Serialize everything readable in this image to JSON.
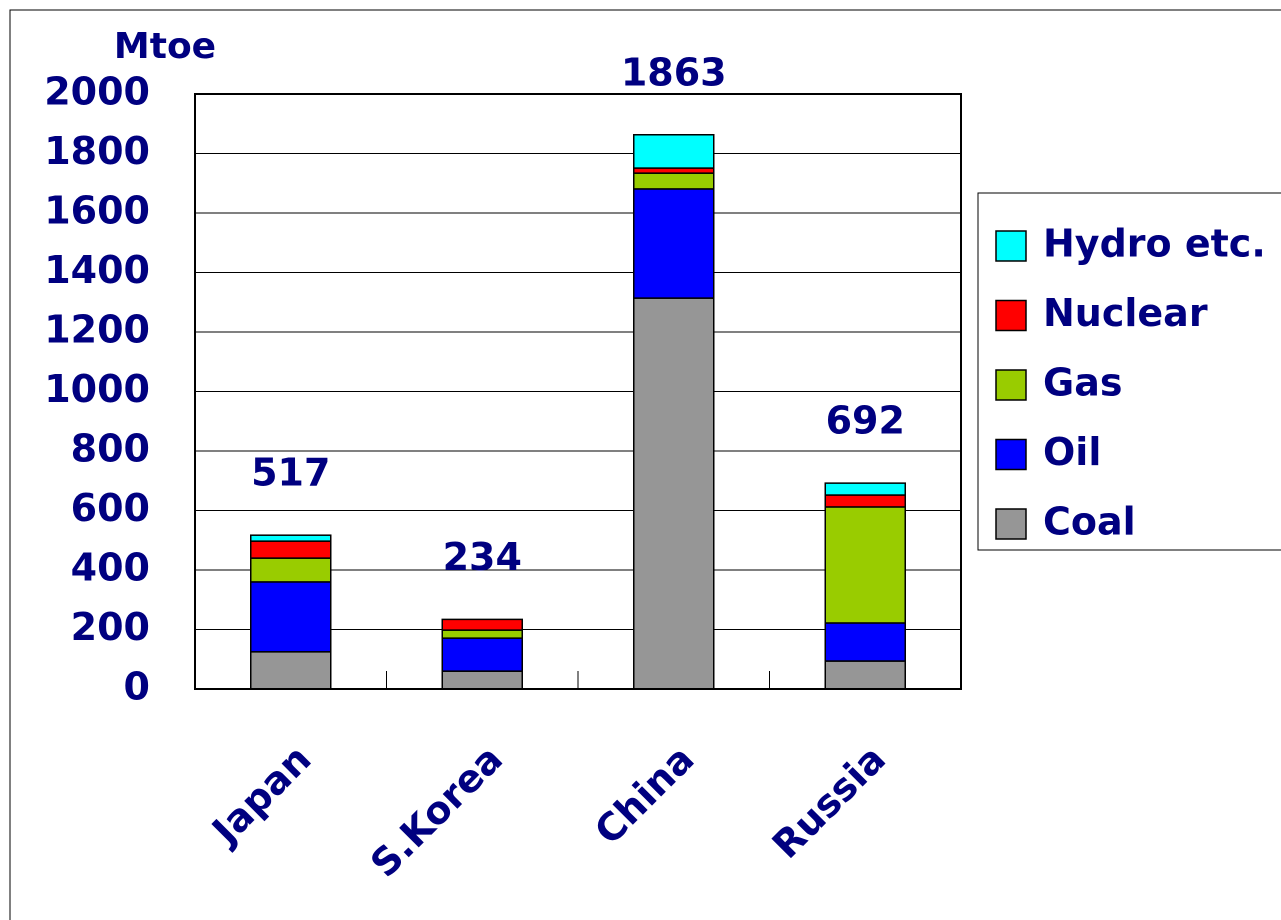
{
  "chart_data": {
    "type": "stacked_bar",
    "y_label": "Mtoe",
    "categories": [
      "Japan",
      "S.Korea",
      "China",
      "Russia"
    ],
    "series": [
      {
        "name": "Coal",
        "color": "#969696",
        "values": [
          125,
          60,
          1314,
          94
        ]
      },
      {
        "name": "Oil",
        "color": "#0000ff",
        "values": [
          235,
          111,
          367,
          128
        ]
      },
      {
        "name": "Gas",
        "color": "#99cc00",
        "values": [
          80,
          27,
          53,
          390
        ]
      },
      {
        "name": "Nuclear",
        "color": "#ff0000",
        "values": [
          57,
          36,
          17,
          40
        ]
      },
      {
        "name": "Hydro etc.",
        "color": "#00ffff",
        "values": [
          20,
          0,
          112,
          40
        ]
      }
    ],
    "totals": [
      517,
      234,
      1863,
      692
    ],
    "ylim": [
      0,
      2000
    ],
    "yticks": [
      0,
      200,
      400,
      600,
      800,
      1000,
      1200,
      1400,
      1600,
      1800,
      2000
    ],
    "grid": true,
    "legend": "right"
  }
}
